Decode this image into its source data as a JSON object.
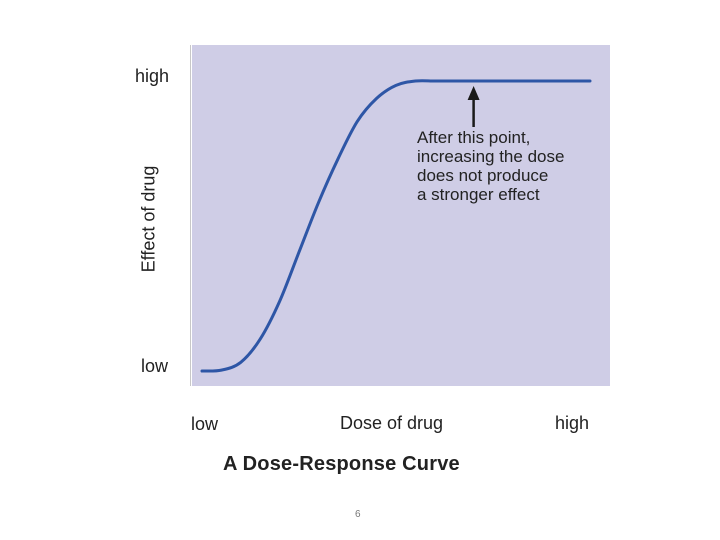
{
  "chart_data": {
    "type": "line",
    "title": "A Dose-Response Curve",
    "xlabel": "Dose of drug",
    "ylabel": "Effect of drug",
    "x_tick_labels": {
      "low": "low",
      "high": "high"
    },
    "y_tick_labels": {
      "low": "low",
      "high": "high"
    },
    "xlim": [
      0,
      1
    ],
    "ylim": [
      0,
      1
    ],
    "series": [
      {
        "values_x": [
          0,
          0.05,
          0.1,
          0.15,
          0.2,
          0.25,
          0.3,
          0.35,
          0.4,
          0.45,
          0.5,
          0.55,
          0.6,
          0.65,
          0.7,
          0.75,
          0.8,
          0.85,
          0.9,
          0.95,
          1.0
        ],
        "values_y": [
          0,
          0.003,
          0.03,
          0.11,
          0.24,
          0.41,
          0.58,
          0.73,
          0.86,
          0.94,
          0.985,
          1.0,
          1.0,
          1.0,
          1.0,
          1.0,
          1.0,
          1.0,
          1.0,
          1.0,
          1.0
        ]
      }
    ],
    "annotation": {
      "lines": [
        "After this point,",
        "increasing the dose",
        "does not produce",
        "a stronger effect"
      ],
      "points_to_x": 0.7
    },
    "grid": false,
    "colors": {
      "plot_background": "#cfcde6",
      "line": "#2e56a6",
      "arrow": "#1a1a1a"
    }
  },
  "page_number": "6"
}
